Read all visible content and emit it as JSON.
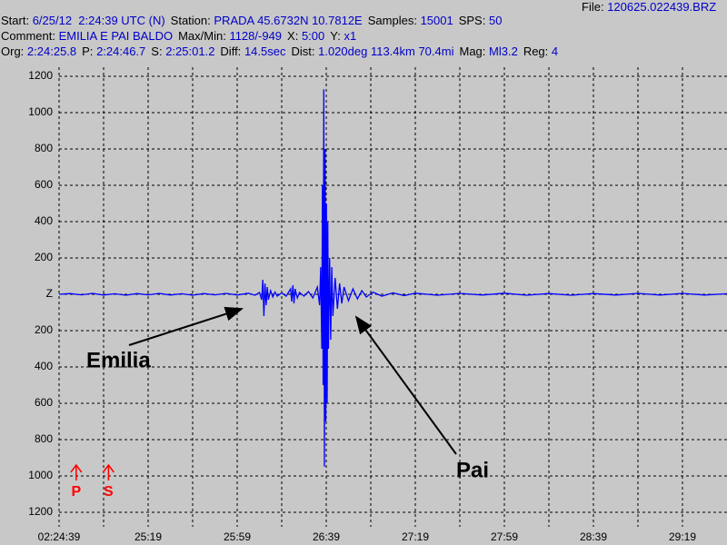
{
  "header": {
    "file": {
      "label": "File:",
      "value": "120625.022439.BRZ"
    },
    "lines": [
      [
        {
          "label": "Start:",
          "value": "6/25/12  2:24:39 UTC (N)"
        },
        {
          "label": "Station:",
          "value": "PRADA 45.6732N 10.7812E"
        },
        {
          "label": "Samples:",
          "value": "15001"
        },
        {
          "label": "SPS:",
          "value": "50"
        }
      ],
      [
        {
          "label": "Comment:",
          "value": "EMILIA E PAI BALDO"
        },
        {
          "label": "Max/Min:",
          "value": "1128/-949"
        },
        {
          "label": "X:",
          "value": "5:00"
        },
        {
          "label": "Y:",
          "value": "x1"
        }
      ],
      [
        {
          "label": "Org:",
          "value": "2:24:25.8"
        },
        {
          "label": "P:",
          "value": "2:24:46.7"
        },
        {
          "label": "S:",
          "value": "2:25:01.2"
        },
        {
          "label": "Diff:",
          "value": "14.5sec"
        },
        {
          "label": "Dist:",
          "value": "1.020deg 113.4km 70.4mi"
        },
        {
          "label": "Mag:",
          "value": "Ml3.2"
        },
        {
          "label": "Reg:",
          "value": "4"
        }
      ]
    ]
  },
  "chart_data": {
    "type": "line",
    "color": "#0000ff",
    "x": [
      0,
      5,
      10,
      15,
      20,
      25,
      30,
      35,
      40,
      45,
      50,
      55,
      60,
      65,
      70,
      75,
      80,
      85,
      88,
      90,
      91,
      91.5,
      92,
      92.5,
      93,
      93.5,
      94,
      95,
      96,
      97,
      98,
      100,
      102,
      104,
      104.5,
      105,
      105.5,
      106,
      107,
      108,
      110,
      112,
      114,
      116,
      117,
      117.5,
      118,
      118.3,
      118.6,
      118.9,
      119.2,
      119.5,
      119.8,
      120.1,
      120.4,
      120.7,
      121,
      121.5,
      122,
      122.5,
      123,
      124,
      125,
      126,
      127,
      128,
      130,
      132,
      134,
      136,
      138,
      141,
      145,
      150,
      155,
      160,
      170,
      180,
      190,
      200,
      210,
      220,
      230,
      240,
      250,
      260,
      270,
      280,
      290,
      300
    ],
    "values": [
      0,
      4,
      -3,
      5,
      -4,
      3,
      -5,
      4,
      -3,
      5,
      -4,
      3,
      -5,
      4,
      -3,
      5,
      -4,
      6,
      -5,
      10,
      -30,
      80,
      -120,
      60,
      -60,
      40,
      -30,
      20,
      -15,
      12,
      -10,
      8,
      -10,
      30,
      -40,
      50,
      -50,
      30,
      -20,
      10,
      -10,
      15,
      -20,
      40,
      -60,
      150,
      -300,
      600,
      -500,
      1128,
      -949,
      800,
      -700,
      500,
      -600,
      400,
      -300,
      200,
      -250,
      150,
      -120,
      90,
      -80,
      60,
      -50,
      40,
      -35,
      30,
      -25,
      20,
      -15,
      12,
      -10,
      8,
      -7,
      6,
      -5,
      5,
      -4,
      6,
      -5,
      4,
      -5,
      4,
      -4,
      5,
      -4,
      5,
      -4,
      3
    ],
    "xlim": [
      0,
      300
    ],
    "ylim": [
      -1250,
      1250
    ],
    "xticks": [
      {
        "value": 0,
        "label": "02:24:39"
      },
      {
        "value": 40,
        "label": "25:19"
      },
      {
        "value": 80,
        "label": "25:59"
      },
      {
        "value": 120,
        "label": "26:39"
      },
      {
        "value": 160,
        "label": "27:19"
      },
      {
        "value": 200,
        "label": "27:59"
      },
      {
        "value": 240,
        "label": "28:39"
      },
      {
        "value": 280,
        "label": "29:19"
      }
    ],
    "x_minor_grid": [
      20,
      60,
      100,
      140,
      180,
      220,
      260
    ],
    "yticks": [
      1200,
      1000,
      800,
      600,
      400,
      200,
      {
        "value": 0,
        "label": "Z"
      },
      {
        "value": -200,
        "label": "200"
      },
      {
        "value": -400,
        "label": "400"
      },
      {
        "value": -600,
        "label": "600"
      },
      {
        "value": -800,
        "label": "800"
      },
      {
        "value": -1000,
        "label": "1000"
      },
      {
        "value": -1200,
        "label": "1200"
      }
    ],
    "grid": true,
    "phase_markers": [
      {
        "label": "P",
        "x": 7.7,
        "color": "#ff0000"
      },
      {
        "label": "S",
        "x": 22.2,
        "color": "#ff0000"
      }
    ],
    "annotations": [
      "Emilia",
      "Pai"
    ]
  }
}
